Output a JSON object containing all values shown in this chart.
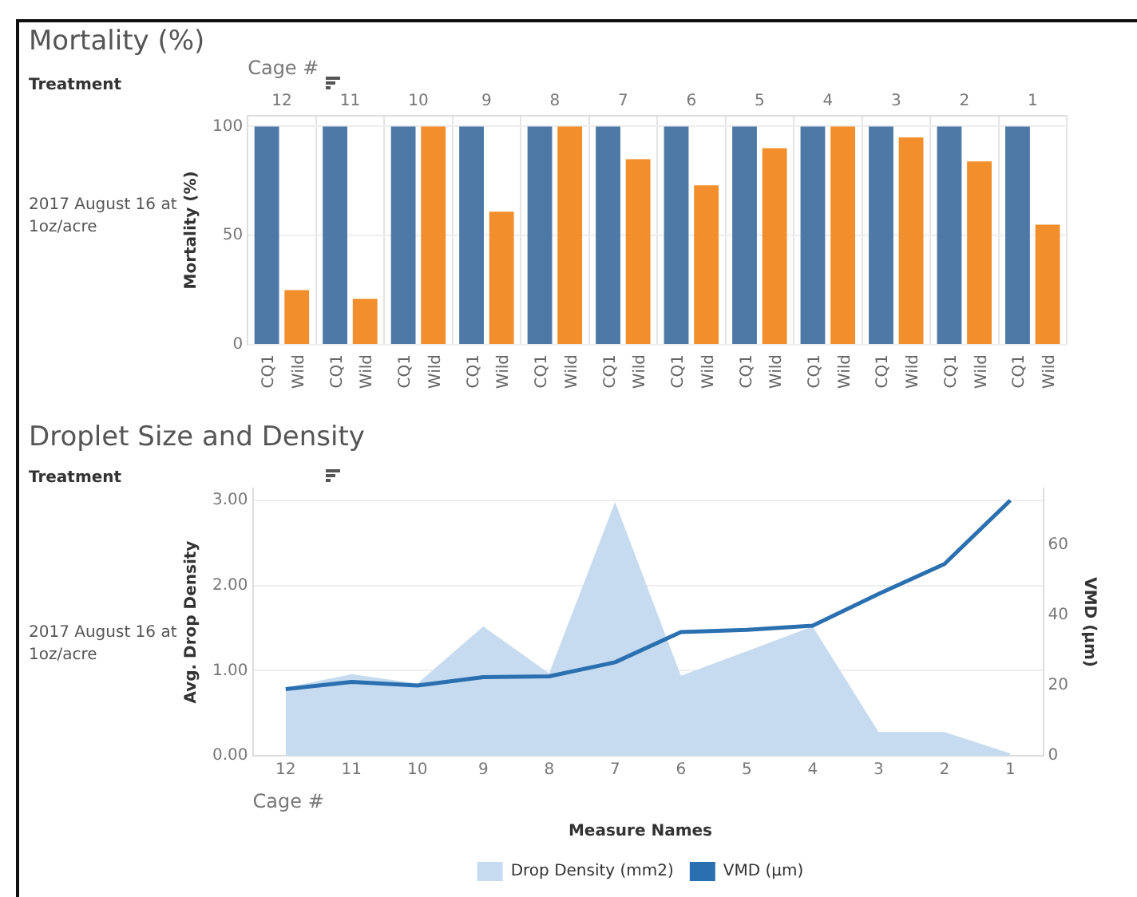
{
  "chart_data": [
    {
      "type": "bar",
      "title": "Mortality (%)",
      "xlabel": "Cage #",
      "ylabel": "Mortality (%)",
      "annotations": [
        "Treatment",
        "2017 August 16 at 1oz/acre"
      ],
      "categories": [
        "12",
        "11",
        "10",
        "9",
        "8",
        "7",
        "6",
        "5",
        "4",
        "3",
        "2",
        "1"
      ],
      "series": [
        {
          "name": "CQ1",
          "color": "#4e79a7",
          "values": [
            100,
            100,
            100,
            100,
            100,
            100,
            100,
            100,
            100,
            100,
            100,
            100
          ]
        },
        {
          "name": "Wild",
          "color": "#f28e2b",
          "values": [
            25,
            21,
            100,
            61,
            100,
            85,
            73,
            90,
            100,
            95,
            84,
            55
          ]
        }
      ],
      "ylim": [
        0,
        105
      ],
      "yticks": [
        0,
        50,
        100
      ],
      "grid": true
    },
    {
      "type": "area",
      "title": "Droplet Size and Density",
      "xlabel": "Cage #",
      "ylabel": "Avg. Drop Density",
      "y2label": "VMD (µm)",
      "legend_title": "Measure Names",
      "legend": "bottom",
      "marker": "none",
      "annotations": [
        "Treatment",
        "2017 August 16 at 1oz/acre"
      ],
      "categories": [
        "12",
        "11",
        "10",
        "9",
        "8",
        "7",
        "6",
        "5",
        "4",
        "3",
        "2",
        "1"
      ],
      "series": [
        {
          "name": "Drop Density (mm2)",
          "type": "area",
          "color": "#c6dbef",
          "values": [
            0.8,
            0.96,
            0.85,
            1.52,
            0.97,
            2.98,
            0.94,
            1.23,
            1.52,
            0.28,
            0.28,
            0.03
          ]
        },
        {
          "name": "VMD (µm)",
          "type": "line",
          "axis": "y2",
          "color": "#2a6fb0",
          "values": [
            19,
            21,
            20,
            22.4,
            22.6,
            26.6,
            35.2,
            35.8,
            37,
            46,
            54.5,
            72.6
          ]
        }
      ],
      "ylim": [
        0,
        3.14
      ],
      "yticks": [
        {
          "value": 0,
          "label": "0.00"
        },
        {
          "value": 1,
          "label": "1.00"
        },
        {
          "value": 2,
          "label": "2.00"
        },
        {
          "value": 3,
          "label": "3.00"
        }
      ],
      "y2lim": [
        0,
        76
      ],
      "y2ticks": [
        0,
        20,
        40,
        60
      ],
      "grid": "y"
    }
  ]
}
